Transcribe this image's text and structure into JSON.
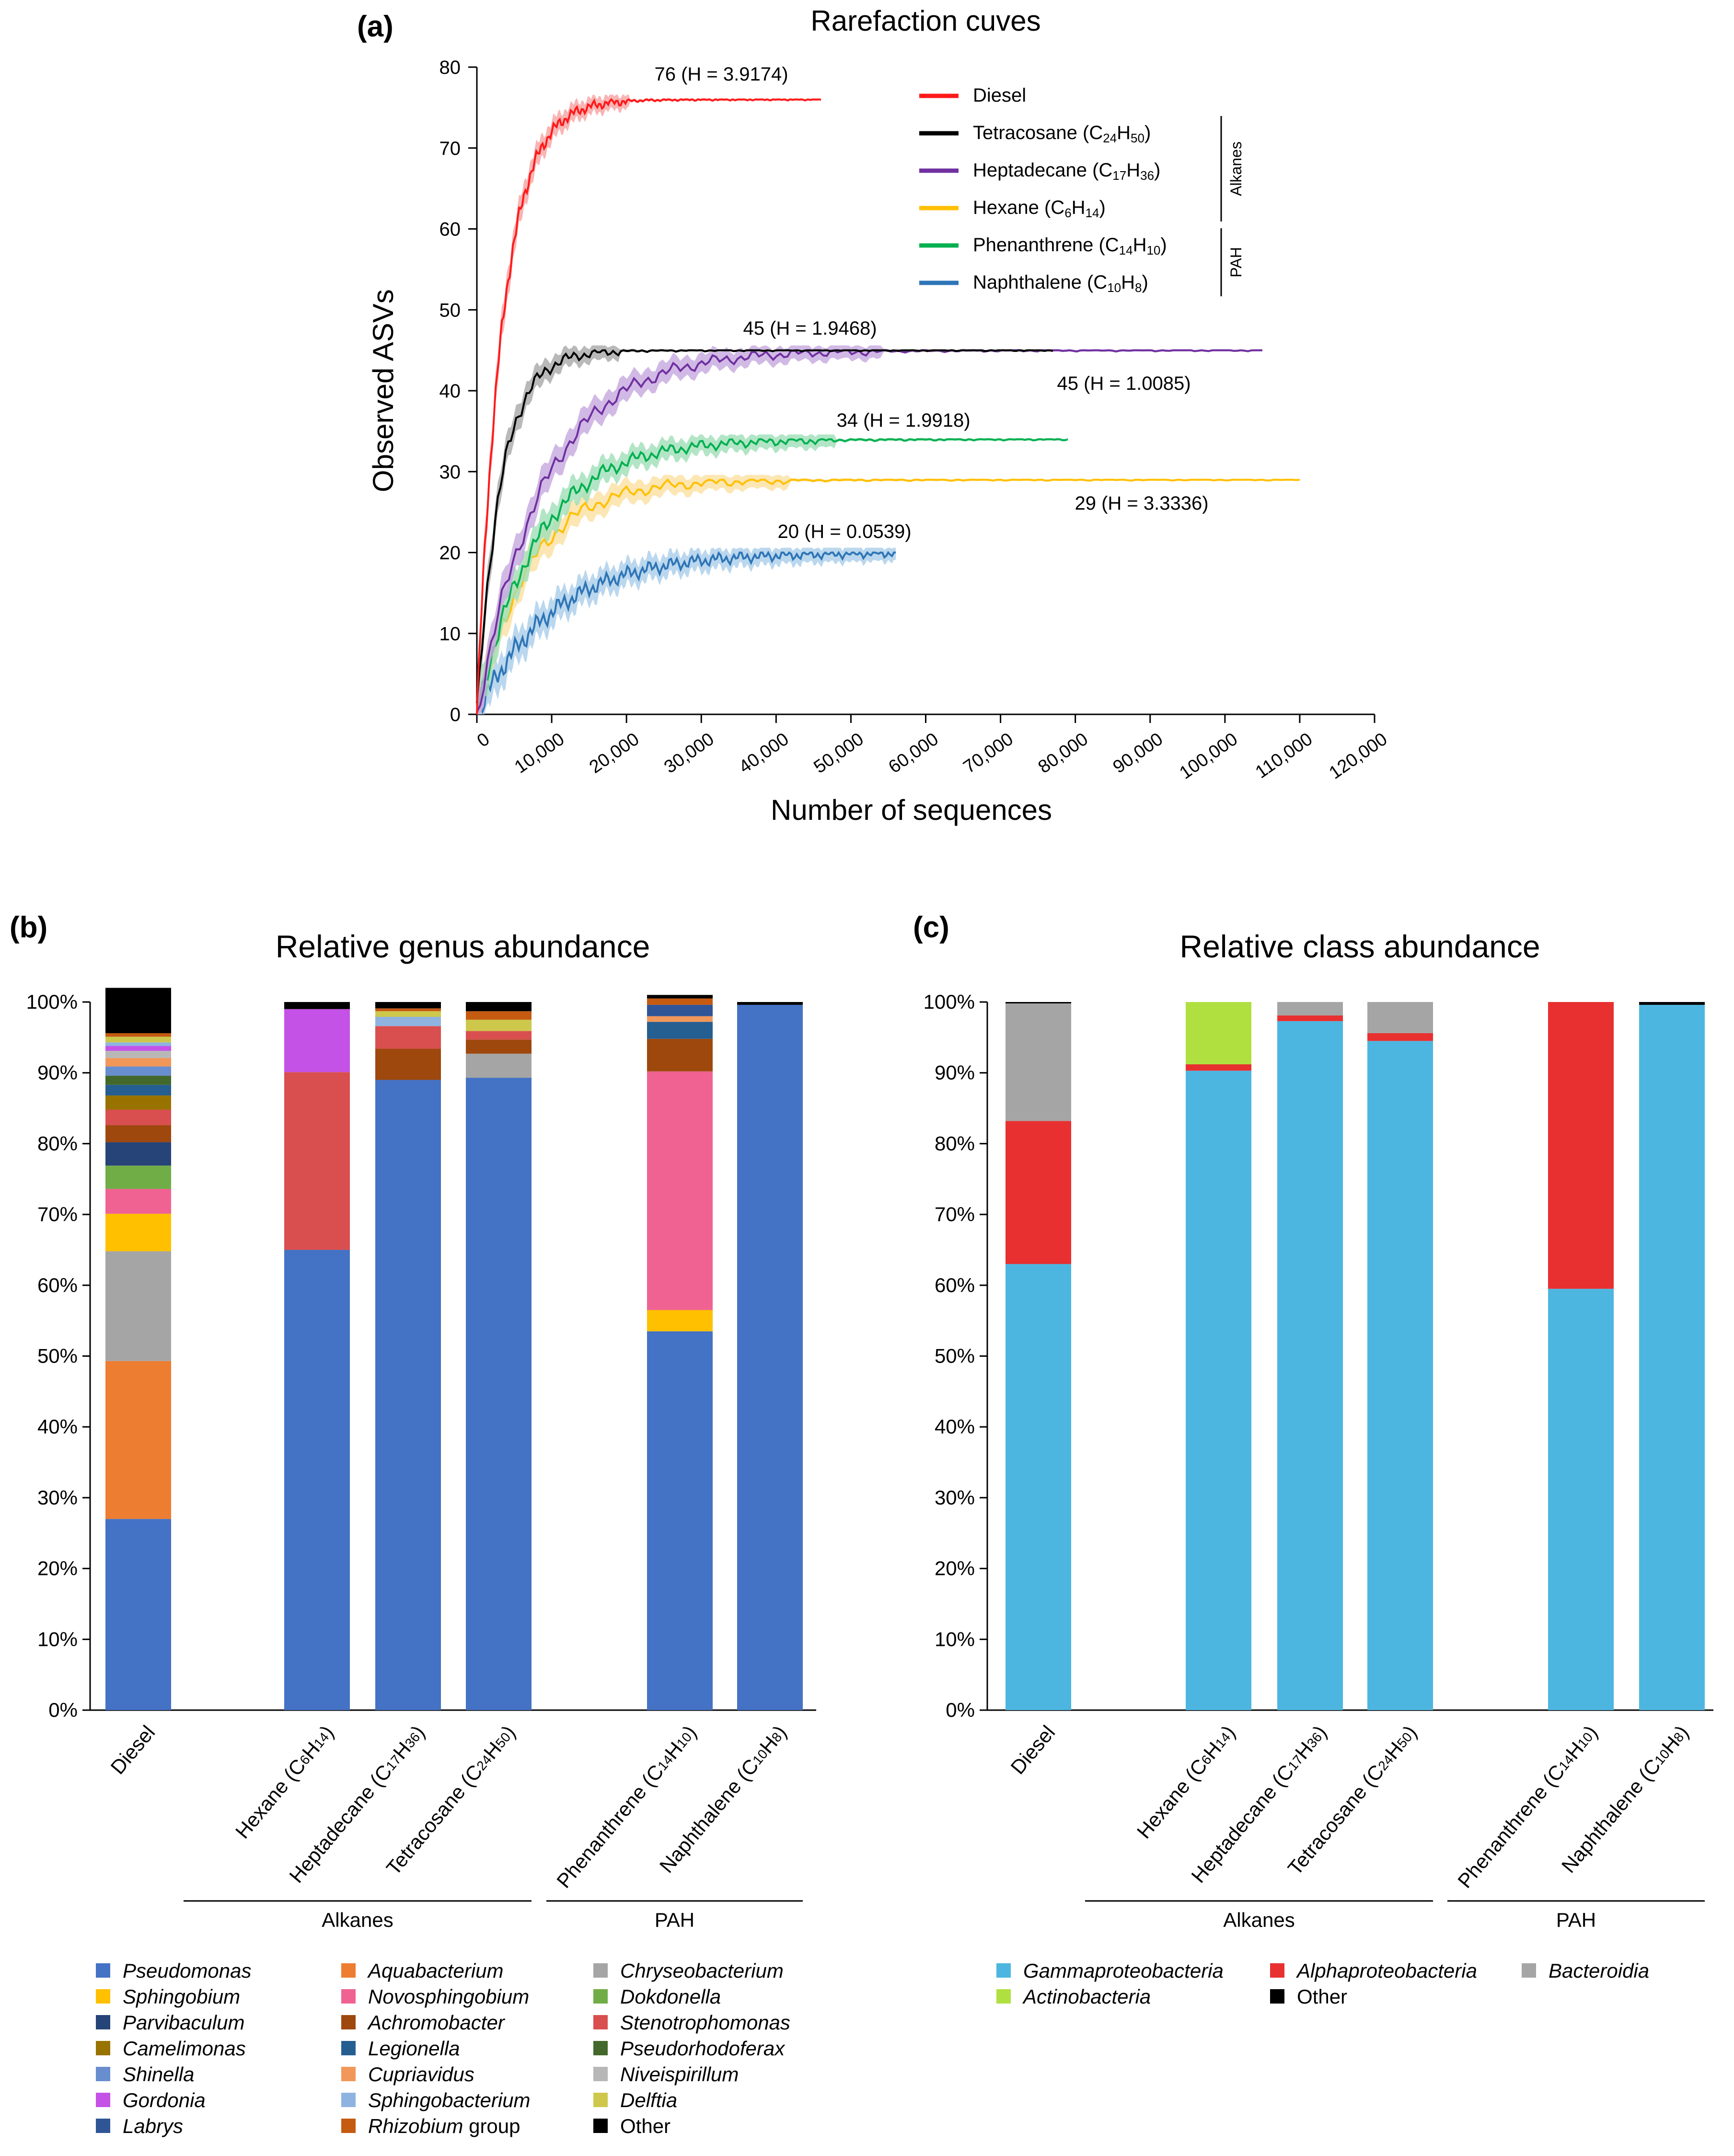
{
  "panel_labels": {
    "a": "(a)",
    "b": "(b)",
    "c": "(c)"
  },
  "chart_data": [
    {
      "id": "rarefaction",
      "type": "line",
      "title": "Rarefaction cuves",
      "xlabel": "Number of sequences",
      "ylabel": "Observed ASVs",
      "xlim": [
        0,
        120000
      ],
      "ylim": [
        0,
        80
      ],
      "xticks": [
        "0",
        "10,000",
        "20,000",
        "30,000",
        "40,000",
        "50,000",
        "60,000",
        "70,000",
        "80,000",
        "90,000",
        "100,000",
        "110,000",
        "120,000"
      ],
      "yticks": [
        "0",
        "10",
        "20",
        "30",
        "40",
        "50",
        "60",
        "70",
        "80"
      ],
      "legend_groups": [
        {
          "label": "Alkanes",
          "from": 1,
          "to": 3
        },
        {
          "label": "PAH",
          "from": 4,
          "to": 5
        }
      ],
      "series": [
        {
          "name": "Diesel",
          "legend": [
            [
              "Diesel",
              "n"
            ]
          ],
          "color": "#ff1a1a",
          "band": "#f7a1a1",
          "final": 76,
          "xmax": 46000,
          "k": 3400,
          "annotation": "76 (H = 3.9174)"
        },
        {
          "name": "Tetracosane (C24H50)",
          "legend": [
            [
              "Tetracosane (C",
              "n"
            ],
            [
              "24",
              "s"
            ],
            [
              "H",
              "n"
            ],
            [
              "50",
              "s"
            ],
            [
              ")",
              "n"
            ]
          ],
          "color": "#000000",
          "band": "#a8a8a8",
          "final": 45,
          "xmax": 77000,
          "k": 3200,
          "annotation": "45 (H = 1.9468)"
        },
        {
          "name": "Heptadecane (C17H36)",
          "legend": [
            [
              "Heptadecane (C",
              "n"
            ],
            [
              "17",
              "s"
            ],
            [
              "H",
              "n"
            ],
            [
              "36",
              "s"
            ],
            [
              ")",
              "n"
            ]
          ],
          "color": "#7030a0",
          "band": "#c6a8de",
          "final": 45,
          "xmax": 105000,
          "k": 9000,
          "annotation": "45 (H = 1.0085)"
        },
        {
          "name": "Hexane (C6H14)",
          "legend": [
            [
              "Hexane (C",
              "n"
            ],
            [
              "6",
              "s"
            ],
            [
              "H",
              "n"
            ],
            [
              "14",
              "s"
            ],
            [
              ")",
              "n"
            ]
          ],
          "color": "#ffc000",
          "band": "#fbe0a0",
          "final": 29,
          "xmax": 110000,
          "k": 7000,
          "annotation": "29 (H = 3.3336)"
        },
        {
          "name": "Phenanthrene (C14H10)",
          "legend": [
            [
              "Phenanthrene (C",
              "n"
            ],
            [
              "14",
              "s"
            ],
            [
              "H",
              "n"
            ],
            [
              "10",
              "s"
            ],
            [
              ")",
              "n"
            ]
          ],
          "color": "#00b050",
          "band": "#9fdfb8",
          "final": 34,
          "xmax": 79000,
          "k": 8000,
          "annotation": "34 (H = 1.9918)"
        },
        {
          "name": "Naphthalene (C10H8)",
          "legend": [
            [
              "Naphthalene (C",
              "n"
            ],
            [
              "10",
              "s"
            ],
            [
              "H",
              "n"
            ],
            [
              "8",
              "s"
            ],
            [
              ")",
              "n"
            ]
          ],
          "color": "#2e75b6",
          "band": "#a9cdea",
          "final": 20,
          "xmax": 56000,
          "k": 10000,
          "annotation": "20 (H = 0.0539)"
        }
      ]
    },
    {
      "id": "genus",
      "type": "bar",
      "stacked": true,
      "title": "Relative genus abundance",
      "ylim": [
        0,
        100
      ],
      "yticks": [
        "0%",
        "10%",
        "20%",
        "30%",
        "40%",
        "50%",
        "60%",
        "70%",
        "80%",
        "90%",
        "100%"
      ],
      "categories": [
        {
          "label": [
            [
              "Diesel",
              "n"
            ]
          ]
        },
        {
          "label": [
            [
              "Hexane (C",
              "n"
            ],
            [
              "6",
              "s"
            ],
            [
              "H",
              "n"
            ],
            [
              "14",
              "s"
            ],
            [
              ")",
              "n"
            ]
          ]
        },
        {
          "label": [
            [
              "Heptadecane (C",
              "n"
            ],
            [
              "17",
              "s"
            ],
            [
              "H",
              "n"
            ],
            [
              "36",
              "s"
            ],
            [
              ")",
              "n"
            ]
          ]
        },
        {
          "label": [
            [
              "Tetracosane (C",
              "n"
            ],
            [
              "24",
              "s"
            ],
            [
              "H",
              "n"
            ],
            [
              "50",
              "s"
            ],
            [
              ")",
              "n"
            ]
          ]
        },
        {
          "label": [
            [
              "Phenanthrene (C",
              "n"
            ],
            [
              "14",
              "s"
            ],
            [
              "H",
              "n"
            ],
            [
              "10",
              "s"
            ],
            [
              ")",
              "n"
            ]
          ]
        },
        {
          "label": [
            [
              "Naphthalene (C",
              "n"
            ],
            [
              "10",
              "s"
            ],
            [
              "H",
              "n"
            ],
            [
              "8",
              "s"
            ],
            [
              ")",
              "n"
            ]
          ]
        }
      ],
      "groups": [
        {
          "label": "Alkanes",
          "from": 1,
          "to": 3
        },
        {
          "label": "PAH",
          "from": 4,
          "to": 5
        }
      ],
      "series": [
        {
          "name": "Pseudomonas",
          "italic": true,
          "color": "#4472c4",
          "values": [
            27,
            65,
            89,
            89.3,
            53.5,
            99.6
          ]
        },
        {
          "name": "Aquabacterium",
          "italic": true,
          "color": "#ed7d31",
          "values": [
            22.3,
            0,
            0,
            0,
            0,
            0
          ]
        },
        {
          "name": "Chryseobacterium",
          "italic": true,
          "color": "#a5a5a5",
          "values": [
            15.5,
            0,
            0,
            3.4,
            0,
            0
          ]
        },
        {
          "name": "Sphingobium",
          "italic": true,
          "color": "#ffc000",
          "values": [
            5.3,
            0,
            0,
            0,
            3,
            0
          ]
        },
        {
          "name": "Novosphingobium",
          "italic": true,
          "color": "#f06292",
          "values": [
            3.5,
            0,
            0,
            0,
            33.7,
            0
          ]
        },
        {
          "name": "Dokdonella",
          "italic": true,
          "color": "#70ad47",
          "values": [
            3.3,
            0,
            0,
            0,
            0,
            0
          ]
        },
        {
          "name": "Parvibaculum",
          "italic": true,
          "color": "#264478",
          "values": [
            3.3,
            0,
            0,
            0,
            0,
            0
          ]
        },
        {
          "name": "Achromobacter",
          "italic": true,
          "color": "#9e480e",
          "values": [
            2.4,
            0,
            4.4,
            2,
            4.6,
            0
          ]
        },
        {
          "name": "Stenotrophomonas",
          "italic": true,
          "color": "#d94f4f",
          "values": [
            2.2,
            25.1,
            3.2,
            1.2,
            0,
            0
          ]
        },
        {
          "name": "Camelimonas",
          "italic": true,
          "color": "#997300",
          "values": [
            2,
            0,
            0,
            0,
            0,
            0
          ]
        },
        {
          "name": "Legionella",
          "italic": true,
          "color": "#255e91",
          "values": [
            1.5,
            0,
            0,
            0,
            2.4,
            0
          ]
        },
        {
          "name": "Pseudorhodoferax",
          "italic": true,
          "color": "#43682b",
          "values": [
            1.3,
            0,
            0,
            0,
            0,
            0
          ]
        },
        {
          "name": "Shinella",
          "italic": true,
          "color": "#698ed0",
          "values": [
            1.3,
            0,
            0,
            0,
            0,
            0
          ]
        },
        {
          "name": "Cupriavidus",
          "italic": true,
          "color": "#f1975a",
          "values": [
            1.2,
            0,
            0,
            0,
            0.8,
            0
          ]
        },
        {
          "name": "Niveispirillum",
          "italic": true,
          "color": "#b7b7b7",
          "values": [
            1,
            0,
            0,
            0,
            0,
            0
          ]
        },
        {
          "name": "Gordonia",
          "italic": true,
          "color": "#c452e6",
          "values": [
            0.7,
            8.9,
            0,
            0,
            0,
            0
          ]
        },
        {
          "name": "Sphingobacterium",
          "italic": true,
          "color": "#8fb3e0",
          "values": [
            0.5,
            0,
            1.3,
            0,
            0,
            0
          ]
        },
        {
          "name": "Delftia",
          "italic": true,
          "color": "#cdc84c",
          "values": [
            0.8,
            0,
            0.8,
            1.6,
            0,
            0
          ]
        },
        {
          "name": "Labrys",
          "italic": true,
          "color": "#2f5597",
          "values": [
            0,
            0,
            0,
            0,
            1.6,
            0
          ]
        },
        {
          "name": "Rhizobium group",
          "italic_part": "Rhizobium",
          "plain_part": " group",
          "color": "#c55a11",
          "values": [
            0.5,
            0,
            0.4,
            1.2,
            0.9,
            0
          ]
        },
        {
          "name": "Other",
          "italic": false,
          "color": "#000000",
          "values": [
            6.4,
            1,
            0.9,
            1.3,
            0.5,
            0.4
          ]
        }
      ],
      "legend_order": [
        "Pseudomonas",
        "Aquabacterium",
        "Chryseobacterium",
        "Sphingobium",
        "Novosphingobium",
        "Dokdonella",
        "Parvibaculum",
        "Achromobacter",
        "Stenotrophomonas",
        "Camelimonas",
        "Legionella",
        "Pseudorhodoferax",
        "Shinella",
        "Cupriavidus",
        "Niveispirillum",
        "Gordonia",
        "Sphingobacterium",
        "Delftia",
        "Labrys",
        "Rhizobium group",
        "Other"
      ]
    },
    {
      "id": "class",
      "type": "bar",
      "stacked": true,
      "title": "Relative class abundance",
      "ylim": [
        0,
        100
      ],
      "yticks": [
        "0%",
        "10%",
        "20%",
        "30%",
        "40%",
        "50%",
        "60%",
        "70%",
        "80%",
        "90%",
        "100%"
      ],
      "categories": [
        {
          "label": [
            [
              "Diesel",
              "n"
            ]
          ]
        },
        {
          "label": [
            [
              "Hexane (C",
              "n"
            ],
            [
              "6",
              "s"
            ],
            [
              "H",
              "n"
            ],
            [
              "14",
              "s"
            ],
            [
              ")",
              "n"
            ]
          ]
        },
        {
          "label": [
            [
              "Heptadecane (C",
              "n"
            ],
            [
              "17",
              "s"
            ],
            [
              "H",
              "n"
            ],
            [
              "36",
              "s"
            ],
            [
              ")",
              "n"
            ]
          ]
        },
        {
          "label": [
            [
              "Tetracosane (C",
              "n"
            ],
            [
              "24",
              "s"
            ],
            [
              "H",
              "n"
            ],
            [
              "50",
              "s"
            ],
            [
              ")",
              "n"
            ]
          ]
        },
        {
          "label": [
            [
              "Phenanthrene (C",
              "n"
            ],
            [
              "14",
              "s"
            ],
            [
              "H",
              "n"
            ],
            [
              "10",
              "s"
            ],
            [
              ")",
              "n"
            ]
          ]
        },
        {
          "label": [
            [
              "Naphthalene (C",
              "n"
            ],
            [
              "10",
              "s"
            ],
            [
              "H",
              "n"
            ],
            [
              "8",
              "s"
            ],
            [
              ")",
              "n"
            ]
          ]
        }
      ],
      "groups": [
        {
          "label": "Alkanes",
          "from": 1,
          "to": 3
        },
        {
          "label": "PAH",
          "from": 4,
          "to": 5
        }
      ],
      "series": [
        {
          "name": "Gammaproteobacteria",
          "italic": true,
          "color": "#4db6e0",
          "values": [
            63,
            90.3,
            97.3,
            94.5,
            59.5,
            99.6
          ]
        },
        {
          "name": "Alphaproteobacteria",
          "italic": true,
          "color": "#e83030",
          "values": [
            20.2,
            0.9,
            0.8,
            1.1,
            40.5,
            0
          ]
        },
        {
          "name": "Bacteroidia",
          "italic": true,
          "color": "#a5a5a5",
          "values": [
            16.6,
            0,
            1.9,
            4.4,
            0,
            0
          ]
        },
        {
          "name": "Actinobacteria",
          "italic": true,
          "color": "#b0e040",
          "values": [
            0,
            8.8,
            0,
            0,
            0,
            0
          ]
        },
        {
          "name": "Other",
          "italic": false,
          "color": "#000000",
          "values": [
            0.2,
            0,
            0,
            0,
            0,
            0.4
          ]
        }
      ],
      "legend_order": [
        "Gammaproteobacteria",
        "Alphaproteobacteria",
        "Bacteroidia",
        "Actinobacteria",
        "Other"
      ]
    }
  ]
}
